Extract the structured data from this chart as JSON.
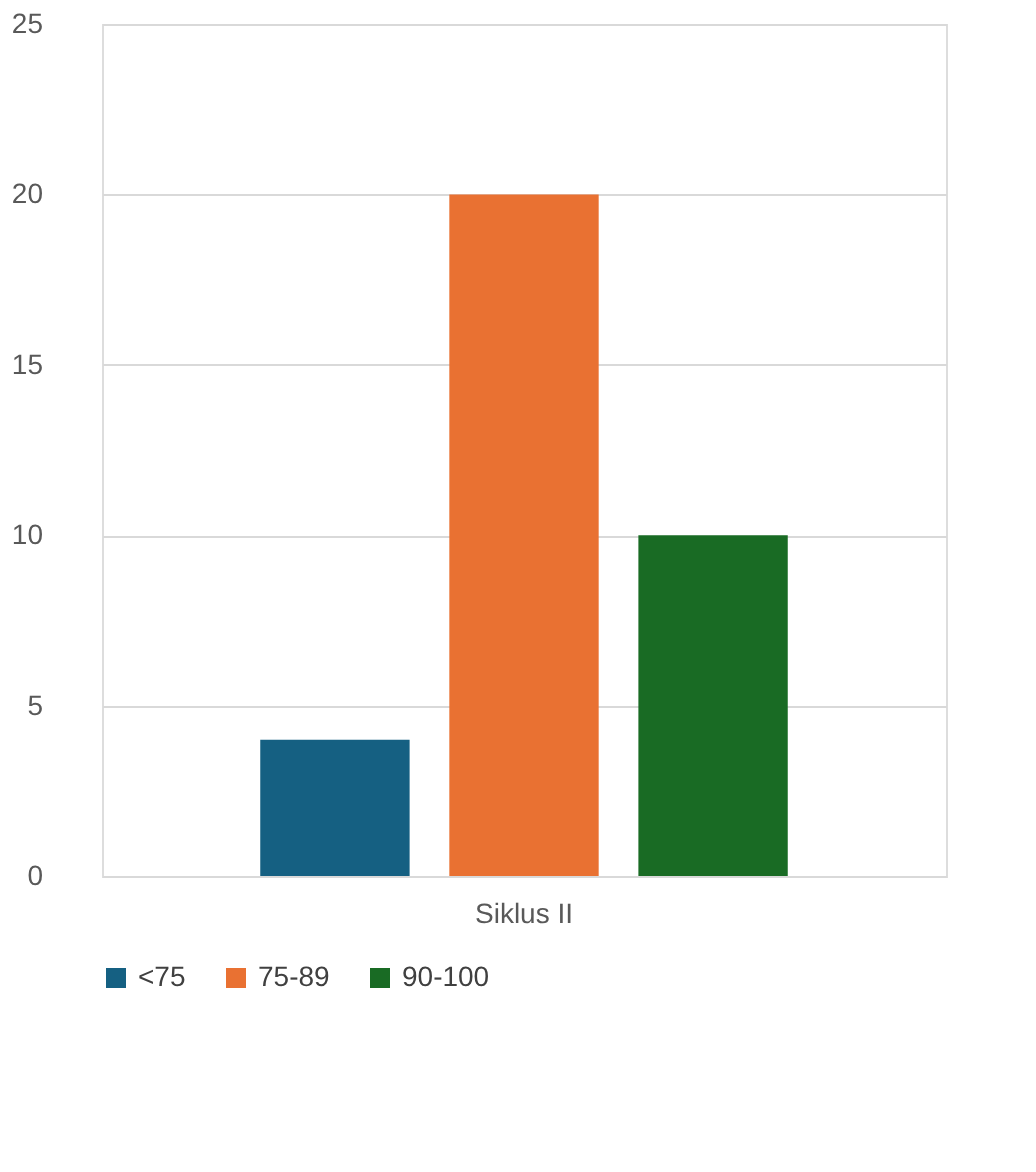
{
  "chart_data": {
    "type": "bar",
    "categories": [
      "Siklus II"
    ],
    "series": [
      {
        "name": "<75",
        "color": "#156082",
        "values": [
          4
        ]
      },
      {
        "name": "75-89",
        "color": "#e97132",
        "values": [
          20
        ]
      },
      {
        "name": "90-100",
        "color": "#196b24",
        "values": [
          10
        ]
      }
    ],
    "ylim": [
      0,
      25
    ],
    "yticks": [
      0,
      5,
      10,
      15,
      20,
      25
    ],
    "grid": "y",
    "legend": "bottom"
  }
}
